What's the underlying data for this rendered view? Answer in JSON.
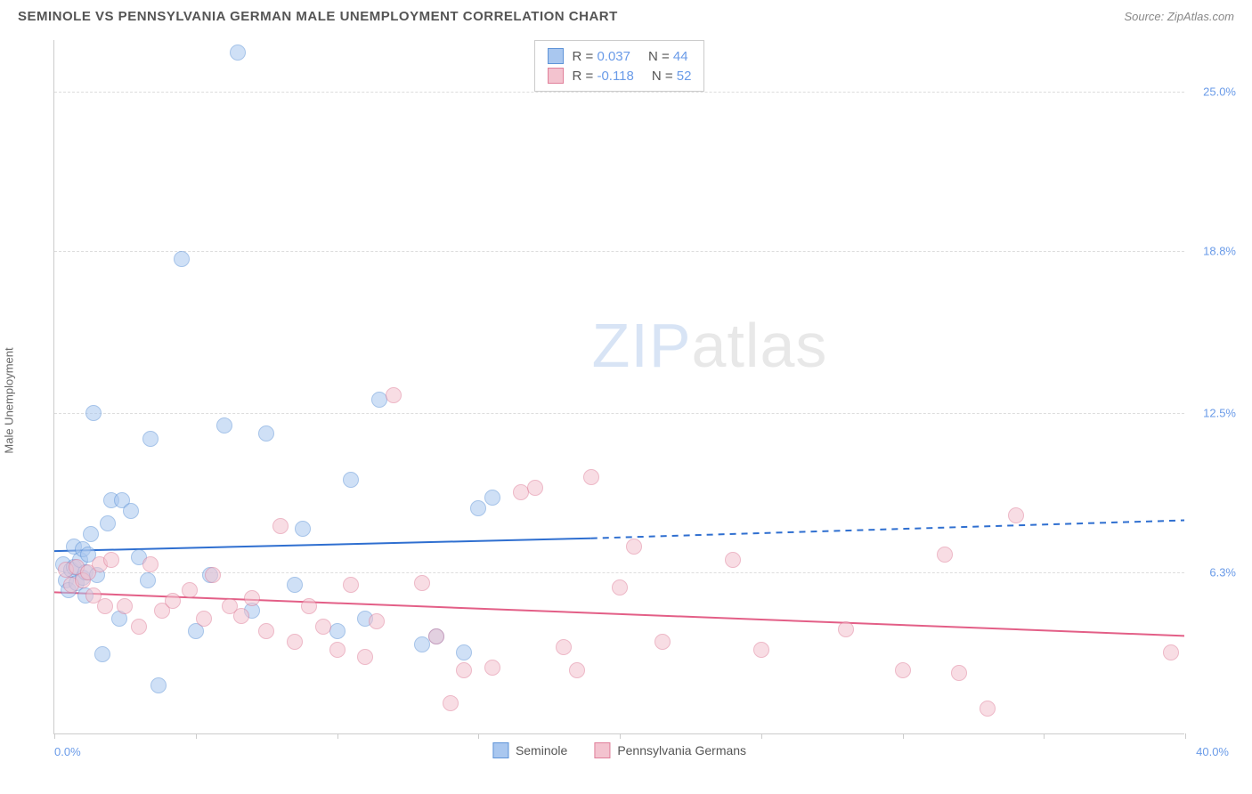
{
  "header": {
    "title": "SEMINOLE VS PENNSYLVANIA GERMAN MALE UNEMPLOYMENT CORRELATION CHART",
    "source": "Source: ZipAtlas.com"
  },
  "watermark": {
    "bold": "ZIP",
    "thin": "atlas"
  },
  "chart": {
    "type": "scatter",
    "y_label": "Male Unemployment",
    "background_color": "#ffffff",
    "grid_color": "#dddddd",
    "axis_color": "#cccccc",
    "label_fontsize": 13,
    "tick_color": "#6a9be8",
    "xlim": [
      0,
      40
    ],
    "ylim": [
      0,
      27
    ],
    "x_ticks": [
      0,
      5,
      10,
      15,
      20,
      25,
      30,
      35,
      40
    ],
    "x_min_label": "0.0%",
    "x_max_label": "40.0%",
    "y_gridlines": [
      {
        "val": 6.3,
        "label": "6.3%"
      },
      {
        "val": 12.5,
        "label": "12.5%"
      },
      {
        "val": 18.8,
        "label": "18.8%"
      },
      {
        "val": 25.0,
        "label": "25.0%"
      }
    ],
    "marker_radius": 9,
    "marker_opacity": 0.55,
    "series": [
      {
        "name": "Seminole",
        "color_fill": "#a9c7ef",
        "color_stroke": "#5f94d8",
        "trend_color": "#2f6fd0",
        "trend_width": 2,
        "trend_dash_extend": true,
        "R": "0.037",
        "N": "44",
        "trend": {
          "x1": 0,
          "y1": 7.1,
          "x2_solid": 19,
          "y2_solid": 7.6,
          "x2_dash": 40,
          "y2_dash": 8.3
        },
        "points": [
          [
            0.3,
            6.6
          ],
          [
            0.4,
            6.0
          ],
          [
            0.5,
            5.6
          ],
          [
            0.6,
            6.4
          ],
          [
            0.7,
            7.3
          ],
          [
            0.7,
            6.5
          ],
          [
            0.8,
            5.9
          ],
          [
            0.9,
            6.8
          ],
          [
            1.0,
            7.2
          ],
          [
            1.0,
            6.1
          ],
          [
            1.1,
            5.4
          ],
          [
            1.1,
            6.3
          ],
          [
            1.2,
            7.0
          ],
          [
            1.3,
            7.8
          ],
          [
            1.4,
            12.5
          ],
          [
            1.5,
            6.2
          ],
          [
            1.7,
            3.1
          ],
          [
            1.9,
            8.2
          ],
          [
            2.0,
            9.1
          ],
          [
            2.3,
            4.5
          ],
          [
            2.4,
            9.1
          ],
          [
            2.7,
            8.7
          ],
          [
            3.0,
            6.9
          ],
          [
            3.3,
            6.0
          ],
          [
            3.4,
            11.5
          ],
          [
            3.7,
            1.9
          ],
          [
            4.5,
            18.5
          ],
          [
            5.0,
            4.0
          ],
          [
            5.5,
            6.2
          ],
          [
            6.0,
            12.0
          ],
          [
            6.5,
            26.5
          ],
          [
            7.0,
            4.8
          ],
          [
            7.5,
            11.7
          ],
          [
            8.5,
            5.8
          ],
          [
            8.8,
            8.0
          ],
          [
            10.0,
            4.0
          ],
          [
            10.5,
            9.9
          ],
          [
            11.0,
            4.5
          ],
          [
            11.5,
            13.0
          ],
          [
            13.0,
            3.5
          ],
          [
            13.5,
            3.8
          ],
          [
            14.5,
            3.2
          ],
          [
            15.0,
            8.8
          ],
          [
            15.5,
            9.2
          ]
        ]
      },
      {
        "name": "Pennsylvania Germans",
        "color_fill": "#f3c3cf",
        "color_stroke": "#e07f9a",
        "trend_color": "#e35f87",
        "trend_width": 2,
        "trend_dash_extend": false,
        "R": "-0.118",
        "N": "52",
        "trend": {
          "x1": 0,
          "y1": 5.5,
          "x2_solid": 40,
          "y2_solid": 3.8,
          "x2_dash": 40,
          "y2_dash": 3.8
        },
        "points": [
          [
            0.4,
            6.4
          ],
          [
            0.6,
            5.8
          ],
          [
            0.8,
            6.5
          ],
          [
            1.0,
            6.0
          ],
          [
            1.2,
            6.3
          ],
          [
            1.4,
            5.4
          ],
          [
            1.6,
            6.6
          ],
          [
            1.8,
            5.0
          ],
          [
            2.0,
            6.8
          ],
          [
            2.5,
            5.0
          ],
          [
            3.0,
            4.2
          ],
          [
            3.4,
            6.6
          ],
          [
            3.8,
            4.8
          ],
          [
            4.2,
            5.2
          ],
          [
            4.8,
            5.6
          ],
          [
            5.3,
            4.5
          ],
          [
            5.6,
            6.2
          ],
          [
            6.2,
            5.0
          ],
          [
            6.6,
            4.6
          ],
          [
            7.0,
            5.3
          ],
          [
            7.5,
            4.0
          ],
          [
            8.0,
            8.1
          ],
          [
            8.5,
            3.6
          ],
          [
            9.0,
            5.0
          ],
          [
            9.5,
            4.2
          ],
          [
            10.0,
            3.3
          ],
          [
            10.5,
            5.8
          ],
          [
            11.0,
            3.0
          ],
          [
            11.4,
            4.4
          ],
          [
            12.0,
            13.2
          ],
          [
            13.0,
            5.9
          ],
          [
            13.5,
            3.8
          ],
          [
            14.0,
            1.2
          ],
          [
            14.5,
            2.5
          ],
          [
            15.5,
            2.6
          ],
          [
            16.5,
            9.4
          ],
          [
            17.0,
            9.6
          ],
          [
            18.0,
            3.4
          ],
          [
            18.5,
            2.5
          ],
          [
            19.0,
            10.0
          ],
          [
            20.0,
            5.7
          ],
          [
            20.5,
            7.3
          ],
          [
            21.5,
            3.6
          ],
          [
            24.0,
            6.8
          ],
          [
            25.0,
            3.3
          ],
          [
            28.0,
            4.1
          ],
          [
            30.0,
            2.5
          ],
          [
            31.5,
            7.0
          ],
          [
            32.0,
            2.4
          ],
          [
            33.0,
            1.0
          ],
          [
            34.0,
            8.5
          ],
          [
            39.5,
            3.2
          ]
        ]
      }
    ],
    "series_legend": [
      {
        "swatch_fill": "#a9c7ef",
        "swatch_stroke": "#5f94d8",
        "label": "Seminole"
      },
      {
        "swatch_fill": "#f3c3cf",
        "swatch_stroke": "#e07f9a",
        "label": "Pennsylvania Germans"
      }
    ]
  }
}
